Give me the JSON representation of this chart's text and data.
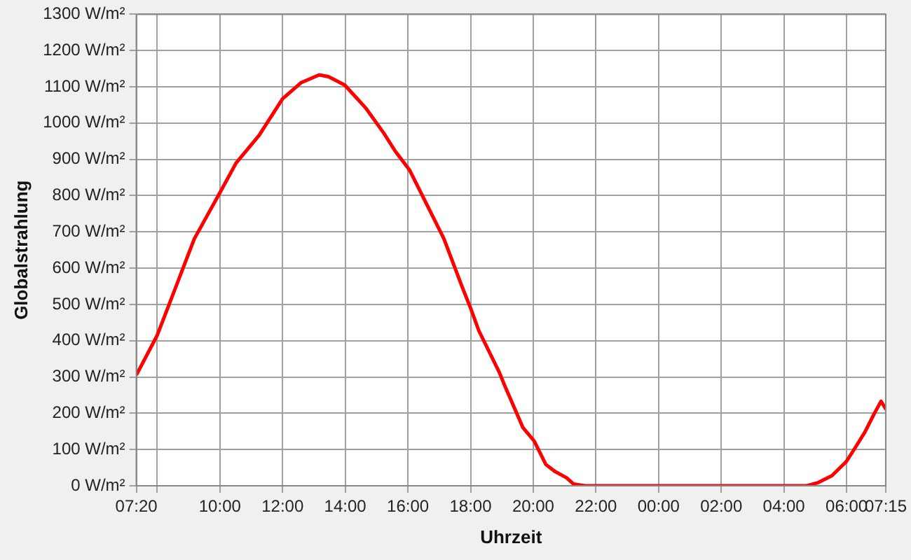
{
  "chart_data": {
    "type": "line",
    "xlabel": "Uhrzeit",
    "ylabel": "Globalstrahlung",
    "x": [
      "2000-01-01T07:21",
      "2000-01-01T08:00",
      "2000-01-01T08:27",
      "2000-01-01T09:11",
      "2000-01-01T10:00",
      "2000-01-01T10:31",
      "2000-01-01T11:15",
      "2000-01-01T12:00",
      "2000-01-01T12:35",
      "2000-01-01T13:10",
      "2000-01-01T13:28",
      "2000-01-01T13:59",
      "2000-01-01T14:39",
      "2000-01-01T15:14",
      "2000-01-01T15:36",
      "2000-01-01T16:03",
      "2000-01-01T16:34",
      "2000-01-01T17:09",
      "2000-01-01T17:44",
      "2000-01-01T18:00",
      "2000-01-01T18:16",
      "2000-01-01T18:55",
      "2000-01-01T19:04",
      "2000-01-01T19:40",
      "2000-01-01T20:02",
      "2000-01-01T20:24",
      "2000-01-01T20:41",
      "2000-01-01T21:04",
      "2000-01-01T21:17",
      "2000-01-01T21:39",
      "2000-01-02T00:00",
      "2000-01-02T02:00",
      "2000-01-02T04:44",
      "2000-01-02T05:06",
      "2000-01-02T05:32",
      "2000-01-02T05:59",
      "2000-01-02T06:13",
      "2000-01-02T06:35",
      "2000-01-02T06:53",
      "2000-01-02T07:06",
      "2000-01-02T07:15"
    ],
    "series": [
      {
        "color": "#ff0000",
        "values": [
          308,
          415,
          516,
          681,
          808,
          890,
          966,
          1067,
          1111,
          1133,
          1128,
          1105,
          1042,
          972,
          922,
          871,
          782,
          681,
          548,
          490,
          427,
          313,
          281,
          161,
          123,
          59,
          40,
          22,
          5,
          0,
          0,
          0,
          0,
          9,
          28,
          66,
          97,
          148,
          199,
          233,
          212
        ]
      }
    ],
    "xlim": [
      "2000-01-01T07:20",
      "2000-01-02T07:15"
    ],
    "xticks": [
      {
        "value": "2000-01-01T07:20",
        "label": "07:20"
      },
      {
        "value": "2000-01-01T08:00",
        "label": null
      },
      {
        "value": "2000-01-01T10:00",
        "label": "10:00"
      },
      {
        "value": "2000-01-01T12:00",
        "label": "12:00"
      },
      {
        "value": "2000-01-01T14:00",
        "label": "14:00"
      },
      {
        "value": "2000-01-01T16:00",
        "label": "16:00"
      },
      {
        "value": "2000-01-01T18:00",
        "label": "18:00"
      },
      {
        "value": "2000-01-01T20:00",
        "label": "20:00"
      },
      {
        "value": "2000-01-01T22:00",
        "label": "22:00"
      },
      {
        "value": "2000-01-02T00:00",
        "label": "00:00"
      },
      {
        "value": "2000-01-02T02:00",
        "label": "02:00"
      },
      {
        "value": "2000-01-02T04:00",
        "label": "04:00"
      },
      {
        "value": "2000-01-02T06:00",
        "label": "06:00"
      },
      {
        "value": "2000-01-02T07:15",
        "label": "07:15"
      }
    ],
    "ylim": [
      0,
      1300
    ],
    "yticks": [
      {
        "value": 0,
        "label": "0 W/m²"
      },
      {
        "value": 100,
        "label": "100 W/m²"
      },
      {
        "value": 200,
        "label": "200 W/m²"
      },
      {
        "value": 300,
        "label": "300 W/m²"
      },
      {
        "value": 400,
        "label": "400 W/m²"
      },
      {
        "value": 500,
        "label": "500 W/m²"
      },
      {
        "value": 600,
        "label": "600 W/m²"
      },
      {
        "value": 700,
        "label": "700 W/m²"
      },
      {
        "value": 800,
        "label": "800 W/m²"
      },
      {
        "value": 900,
        "label": "900 W/m²"
      },
      {
        "value": 1000,
        "label": "1000 W/m²"
      },
      {
        "value": 1100,
        "label": "1100 W/m²"
      },
      {
        "value": 1200,
        "label": "1200 W/m²"
      },
      {
        "value": 1300,
        "label": "1300 W/m²"
      }
    ],
    "grid": true,
    "marker": "none",
    "line_style": "solid"
  }
}
